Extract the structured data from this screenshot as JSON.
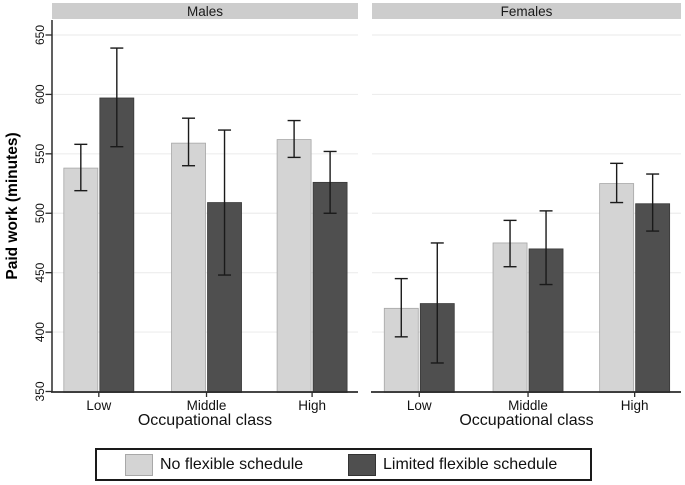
{
  "chart_data": {
    "type": "bar",
    "title": "",
    "ylabel": "Paid work (minutes)",
    "xlabel": "Occupational class",
    "ylim": [
      350,
      650
    ],
    "yticks": [
      350,
      400,
      450,
      500,
      550,
      600,
      650
    ],
    "grid": "horizontal",
    "legend_position": "bottom",
    "categories": [
      "Low",
      "Middle",
      "High"
    ],
    "series_names": [
      "No flexible schedule",
      "Limited flexible schedule"
    ],
    "panels": [
      {
        "title": "Males",
        "series": [
          {
            "name": "No flexible schedule",
            "values": [
              538,
              559,
              562
            ],
            "ci_low": [
              519,
              540,
              547
            ],
            "ci_high": [
              558,
              580,
              578
            ]
          },
          {
            "name": "Limited flexible schedule",
            "values": [
              597,
              509,
              526
            ],
            "ci_low": [
              556,
              448,
              500
            ],
            "ci_high": [
              639,
              570,
              552
            ]
          }
        ]
      },
      {
        "title": "Females",
        "series": [
          {
            "name": "No flexible schedule",
            "values": [
              420,
              475,
              525
            ],
            "ci_low": [
              396,
              455,
              509
            ],
            "ci_high": [
              445,
              494,
              542
            ]
          },
          {
            "name": "Limited flexible schedule",
            "values": [
              424,
              470,
              508
            ],
            "ci_low": [
              374,
              440,
              485
            ],
            "ci_high": [
              475,
              502,
              533
            ]
          }
        ]
      }
    ]
  },
  "legend": {
    "items": [
      {
        "label": "No flexible schedule",
        "color": "#d4d4d4"
      },
      {
        "label": "Limited flexible schedule",
        "color": "#4f4f4f"
      }
    ]
  },
  "colors": {
    "bar_light": "#d4d4d4",
    "bar_light_border": "#a6a6a6",
    "bar_dark": "#4f4f4f",
    "bar_dark_border": "#383838",
    "strip_bg": "#cdcdcd",
    "gridline": "#ededed",
    "axis": "#2b2b2b",
    "error_bar": "#1a1a1a",
    "text": "#111111"
  }
}
